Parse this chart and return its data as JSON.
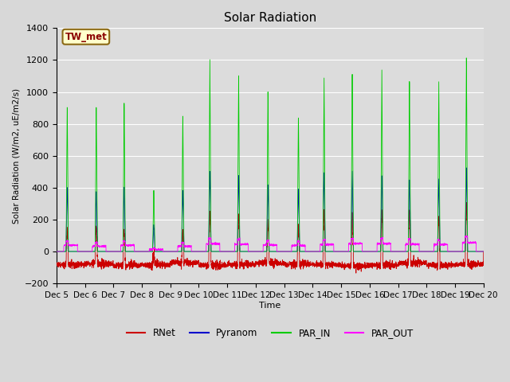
{
  "title": "Solar Radiation",
  "ylabel": "Solar Radiation (W/m2, uE/m2/s)",
  "xlabel": "Time",
  "station_label": "TW_met",
  "ylim": [
    -200,
    1400
  ],
  "xlim_days": [
    5,
    20
  ],
  "tick_days": [
    5,
    6,
    7,
    8,
    9,
    10,
    11,
    12,
    13,
    14,
    15,
    16,
    17,
    18,
    19,
    20
  ],
  "fig_bg_color": "#d8d8d8",
  "plot_bg_color": "#dcdcdc",
  "grid_color": "#ffffff",
  "colors": {
    "RNet": "#cc0000",
    "Pyranom": "#0000cc",
    "PAR_IN": "#00cc00",
    "PAR_OUT": "#ff00ff"
  },
  "legend_entries": [
    "RNet",
    "Pyranom",
    "PAR_IN",
    "PAR_OUT"
  ],
  "figsize": [
    6.4,
    4.8
  ],
  "dpi": 100
}
